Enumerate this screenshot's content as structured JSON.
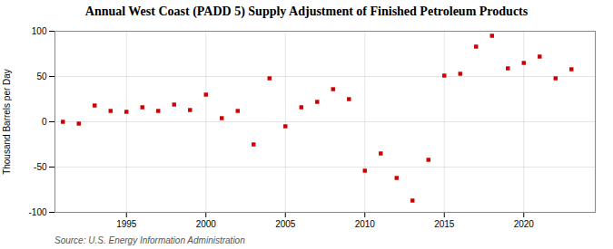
{
  "chart_data": {
    "type": "scatter",
    "title": "Annual West Coast (PADD 5) Supply Adjustment of Finished Petroleum Products",
    "ylabel": "Thousand Barrels per Day",
    "caption": "Source: U.S. Energy Information Administration",
    "x": [
      1991,
      1992,
      1993,
      1994,
      1995,
      1996,
      1997,
      1998,
      1999,
      2000,
      2001,
      2002,
      2003,
      2004,
      2005,
      2006,
      2007,
      2008,
      2009,
      2010,
      2011,
      2012,
      2013,
      2014,
      2015,
      2016,
      2017,
      2018,
      2019,
      2020,
      2021,
      2022,
      2023
    ],
    "values": [
      0,
      -2,
      18,
      12,
      11,
      16,
      12,
      19,
      13,
      30,
      4,
      12,
      -25,
      48,
      -5,
      16,
      22,
      36,
      25,
      -54,
      -35,
      -62,
      -87,
      -42,
      51,
      53,
      83,
      95,
      59,
      65,
      72,
      48,
      58
    ],
    "color": "#cc0000",
    "marker": "square",
    "xlim": [
      1990.5,
      2024.5
    ],
    "xticks": [
      1995,
      2000,
      2005,
      2010,
      2015,
      2020
    ],
    "ylim": [
      -100,
      100
    ],
    "yticks": [
      -100,
      -50,
      0,
      50,
      100
    ],
    "grid": true
  }
}
